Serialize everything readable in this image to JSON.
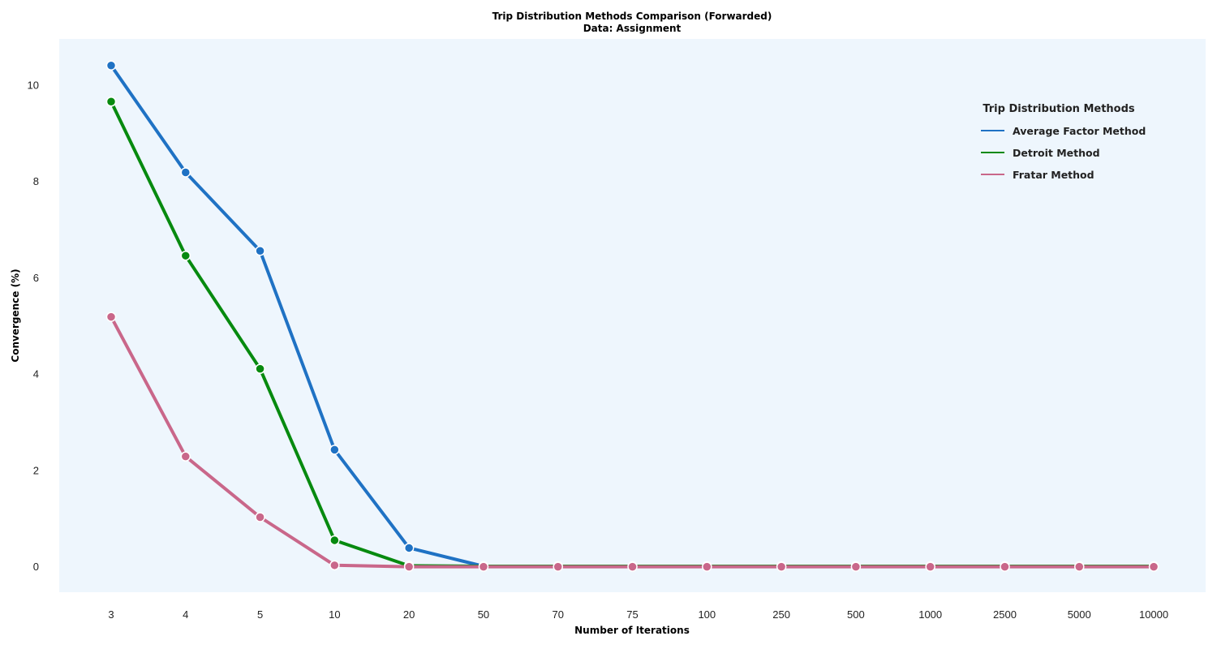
{
  "chart_data": {
    "type": "line",
    "title": "Trip Distribution Methods Comparison (Forwarded)",
    "subtitle": "Data: Assignment",
    "xlabel": "Number of Iterations",
    "ylabel": "Convergence (%)",
    "categories": [
      "3",
      "4",
      "5",
      "10",
      "20",
      "50",
      "70",
      "75",
      "100",
      "250",
      "500",
      "1000",
      "2500",
      "5000",
      "10000"
    ],
    "yticks": [
      0,
      2,
      4,
      6,
      8,
      10
    ],
    "ylim": [
      -0.5,
      11
    ],
    "grid": false,
    "background": "#eef6fd",
    "legend": {
      "title": "Trip Distribution Methods",
      "placement": "top-right"
    },
    "series": [
      {
        "name": "Average Factor Method",
        "color": "#1f72c4",
        "values": [
          10.4,
          8.18,
          6.55,
          2.42,
          0.38,
          0.0,
          0.0,
          0.0,
          0.0,
          0.0,
          0.0,
          0.0,
          0.0,
          0.0,
          0.0
        ]
      },
      {
        "name": "Detroit Method",
        "color": "#078a0f",
        "values": [
          9.65,
          6.45,
          4.1,
          0.54,
          0.01,
          0.0,
          0.0,
          0.0,
          0.0,
          0.0,
          0.0,
          0.0,
          0.0,
          0.0,
          0.0
        ]
      },
      {
        "name": "Fratar Method",
        "color": "#c9678a",
        "values": [
          5.18,
          2.28,
          1.02,
          0.02,
          -0.01,
          -0.01,
          -0.01,
          -0.01,
          -0.01,
          -0.01,
          -0.01,
          -0.01,
          -0.01,
          -0.01,
          -0.01
        ]
      }
    ]
  }
}
